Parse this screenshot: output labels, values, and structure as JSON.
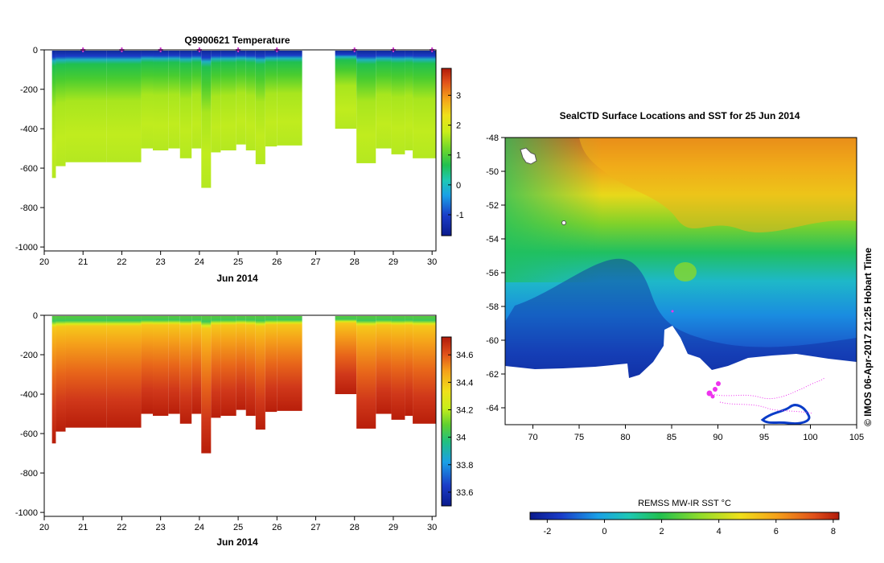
{
  "chart_data": [
    {
      "type": "heatmap",
      "id": "temperature",
      "title": "Q9900621  Temperature",
      "xlabel": "Jun 2014",
      "x_ticks": [
        "20",
        "21",
        "22",
        "23",
        "24",
        "25",
        "26",
        "27",
        "28",
        "29",
        "30"
      ],
      "xlim": [
        20,
        30.1
      ],
      "y_ticks": [
        "0",
        "-200",
        "-400",
        "-600",
        "-800",
        "-1000"
      ],
      "ylim": [
        -1020,
        0
      ],
      "colorbar_ticks": [
        "3",
        "2",
        "1",
        "0",
        "-1"
      ],
      "colorbar_range": [
        -1.7,
        3.9
      ],
      "marker_days": [
        21,
        22,
        23,
        24,
        25,
        26,
        28,
        29,
        30
      ],
      "profiles": [
        {
          "t0": 20.2,
          "t1": 20.3,
          "depth": 650
        },
        {
          "t0": 20.3,
          "t1": 20.55,
          "depth": 590
        },
        {
          "t0": 20.55,
          "t1": 21.6,
          "depth": 570
        },
        {
          "t0": 21.6,
          "t1": 22.5,
          "depth": 570
        },
        {
          "t0": 22.5,
          "t1": 22.8,
          "depth": 500
        },
        {
          "t0": 22.8,
          "t1": 23.2,
          "depth": 510
        },
        {
          "t0": 23.2,
          "t1": 23.5,
          "depth": 500
        },
        {
          "t0": 23.5,
          "t1": 23.8,
          "depth": 550
        },
        {
          "t0": 23.8,
          "t1": 24.05,
          "depth": 500
        },
        {
          "t0": 24.05,
          "t1": 24.3,
          "depth": 700
        },
        {
          "t0": 24.3,
          "t1": 24.55,
          "depth": 520
        },
        {
          "t0": 24.55,
          "t1": 24.95,
          "depth": 510
        },
        {
          "t0": 24.95,
          "t1": 25.2,
          "depth": 480
        },
        {
          "t0": 25.2,
          "t1": 25.45,
          "depth": 510
        },
        {
          "t0": 25.45,
          "t1": 25.7,
          "depth": 580
        },
        {
          "t0": 25.7,
          "t1": 26.0,
          "depth": 490
        },
        {
          "t0": 26.0,
          "t1": 26.65,
          "depth": 485
        },
        {
          "t0": 27.5,
          "t1": 28.05,
          "depth": 400
        },
        {
          "t0": 28.05,
          "t1": 28.55,
          "depth": 575
        },
        {
          "t0": 28.55,
          "t1": 28.95,
          "depth": 500
        },
        {
          "t0": 28.95,
          "t1": 29.3,
          "depth": 530
        },
        {
          "t0": 29.3,
          "t1": 29.5,
          "depth": 510
        },
        {
          "t0": 29.5,
          "t1": 30.1,
          "depth": 550
        }
      ]
    },
    {
      "type": "heatmap",
      "id": "salinity",
      "title": "",
      "xlabel": "Jun 2014",
      "x_ticks": [
        "20",
        "21",
        "22",
        "23",
        "24",
        "25",
        "26",
        "27",
        "28",
        "29",
        "30"
      ],
      "xlim": [
        20,
        30.1
      ],
      "y_ticks": [
        "0",
        "-200",
        "-400",
        "-600",
        "-800",
        "-1000"
      ],
      "ylim": [
        -1020,
        0
      ],
      "colorbar_ticks": [
        "34.6",
        "34.4",
        "34.2",
        "34",
        "33.8",
        "33.6"
      ],
      "colorbar_range": [
        33.5,
        34.73
      ]
    },
    {
      "type": "heatmap",
      "id": "sst_map",
      "title": "SealCTD Surface Locations and SST for 25 Jun 2014",
      "xlabel": "",
      "x_ticks": [
        "70",
        "75",
        "80",
        "85",
        "90",
        "95",
        "100",
        "105"
      ],
      "xlim": [
        67,
        105
      ],
      "y_ticks": [
        "-48",
        "-50",
        "-52",
        "-54",
        "-56",
        "-58",
        "-60",
        "-62",
        "-64"
      ],
      "ylim": [
        -65,
        -48
      ],
      "colorbar_label": "REMSS MW-IR SST °C",
      "colorbar_ticks": [
        "-2",
        "0",
        "2",
        "4",
        "6",
        "8"
      ],
      "colorbar_range": [
        -2.6,
        8.2
      ]
    }
  ],
  "credit": "©  IMOS 06-Apr-2017 21:25 Hobart Time",
  "colors": {
    "marker": "#cc33cc",
    "background": "#ffffff"
  }
}
